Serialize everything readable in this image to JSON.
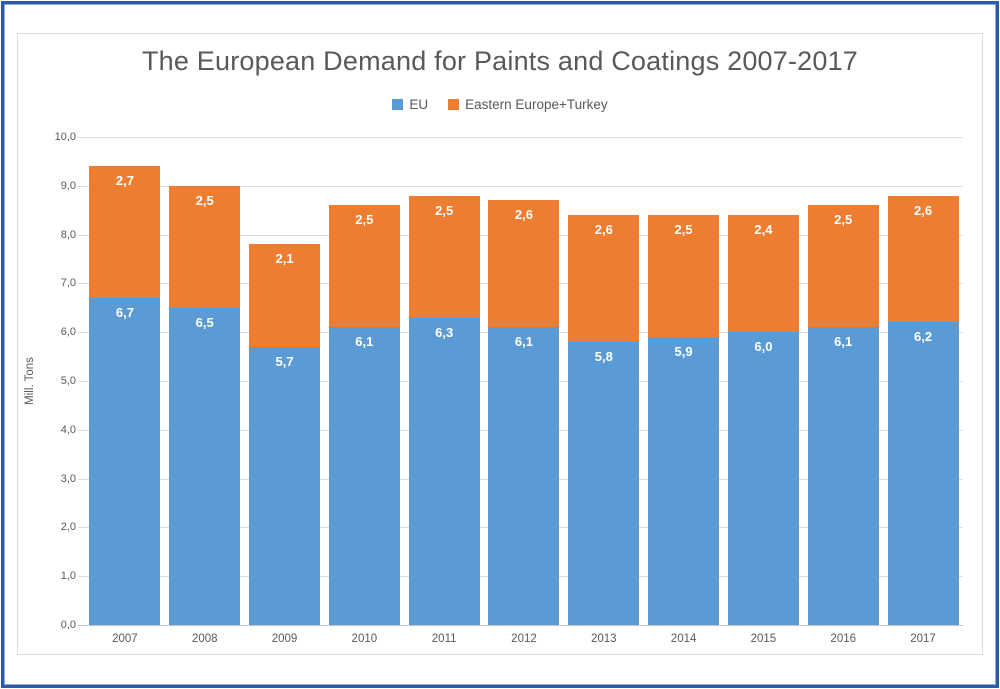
{
  "page": {
    "outer_border_color": "#2b5aa7",
    "chart_frame_border_color": "#d9d9d9",
    "background": "#ffffff"
  },
  "chart_data": {
    "type": "bar",
    "stacked": true,
    "title": "The European Demand for Paints and Coatings 2007-2017",
    "title_color": "#595959",
    "categories": [
      "2007",
      "2008",
      "2009",
      "2010",
      "2011",
      "2012",
      "2013",
      "2014",
      "2015",
      "2016",
      "2017"
    ],
    "series": [
      {
        "name": "EU",
        "color": "#5B9BD5",
        "values": [
          6.7,
          6.5,
          5.7,
          6.1,
          6.3,
          6.1,
          5.8,
          5.9,
          6.0,
          6.1,
          6.2
        ],
        "labels": [
          "6,7",
          "6,5",
          "5,7",
          "6,1",
          "6,3",
          "6,1",
          "5,8",
          "5,9",
          "6,0",
          "6,1",
          "6,2"
        ]
      },
      {
        "name": "Eastern Europe+Turkey",
        "color": "#ED7D31",
        "values": [
          2.7,
          2.5,
          2.1,
          2.5,
          2.5,
          2.6,
          2.6,
          2.5,
          2.4,
          2.5,
          2.6
        ],
        "labels": [
          "2,7",
          "2,5",
          "2,1",
          "2,5",
          "2,5",
          "2,6",
          "2,6",
          "2,5",
          "2,4",
          "2,5",
          "2,6"
        ]
      }
    ],
    "xlabel": "",
    "ylabel": "Mill. Tons",
    "ylim": [
      0,
      10
    ],
    "ytick_step": 1,
    "ytick_labels": [
      "0,0",
      "1,0",
      "2,0",
      "3,0",
      "4,0",
      "5,0",
      "6,0",
      "7,0",
      "8,0",
      "9,0",
      "10,0"
    ],
    "grid": true,
    "gridline_color": "#dedede",
    "axis_text_color": "#595959",
    "data_label_color": "#ffffff",
    "legend_position": "top"
  }
}
